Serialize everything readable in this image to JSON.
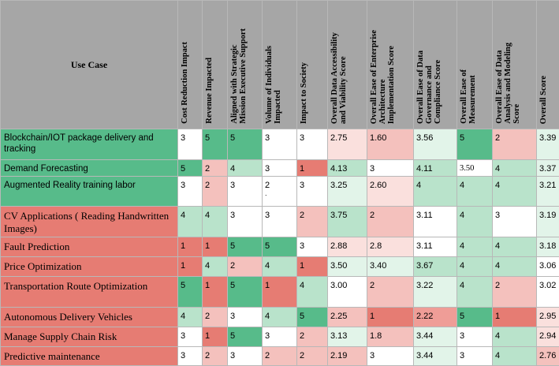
{
  "header": {
    "use_case": "Use Case",
    "columns": [
      "Cost Reduction Impact",
      "Revenue Impacted",
      "Aligned with Strategic\nMission Executive Support",
      "Volume of Individuals\nImpacted",
      "Impact to Society",
      "Overall Data Accessibility\nand Viability Score",
      "Overall Ease of Enterprise\nArchitecture\nImplementation Score",
      "Overall Ease of Data\nGovernance and\nCompliance Score",
      "Overall Ease of\nMeasurement",
      "Overall Ease of Data\nAnalysis and Modeling\nScore",
      "Overall Score"
    ]
  },
  "colors": {
    "header": "#a6a6a6",
    "green_dark": "#57bb8a",
    "green_mid": "#88cfa8",
    "green_light": "#b9e3cb",
    "green_pale": "#e2f4e9",
    "red_dark": "#e67c73",
    "red_mid": "#ef9d97",
    "red_light": "#f4c1bd",
    "red_pale": "#fae0dd",
    "white": "#ffffff"
  },
  "rows": [
    {
      "label": "Blockchain/IOT package delivery and tracking",
      "color": "green_dark",
      "font": "sans",
      "cells": [
        [
          "3",
          "white"
        ],
        [
          "5",
          "green_dark"
        ],
        [
          "5",
          "green_dark"
        ],
        [
          "3",
          "white"
        ],
        [
          "3",
          "white"
        ],
        [
          "2.75",
          "red_pale"
        ],
        [
          "1.60",
          "red_light"
        ],
        [
          "3.56",
          "green_pale"
        ],
        [
          "5",
          "green_dark"
        ],
        [
          "2",
          "red_light"
        ],
        [
          "3.39",
          "green_pale"
        ]
      ]
    },
    {
      "label": "Demand Forecasting",
      "color": "green_dark",
      "font": "sans",
      "cells": [
        [
          "5",
          "green_dark"
        ],
        [
          "2",
          "red_light"
        ],
        [
          "4",
          "green_light"
        ],
        [
          "3",
          "white"
        ],
        [
          "1",
          "red_dark"
        ],
        [
          "4.13",
          "green_light"
        ],
        [
          "3",
          "white"
        ],
        [
          "4.11",
          "green_light"
        ],
        [
          "3.50",
          "white"
        ],
        [
          "4",
          "green_light"
        ],
        [
          "3.37",
          "green_pale"
        ]
      ]
    },
    {
      "label": "Augmented Reality training labor",
      "color": "green_dark",
      "font": "sans",
      "cells": [
        [
          "3",
          "white"
        ],
        [
          "2",
          "red_light"
        ],
        [
          "3",
          "white"
        ],
        [
          "2",
          "white",
          "."
        ],
        [
          "3",
          "white"
        ],
        [
          "3.25",
          "green_pale"
        ],
        [
          "2.60",
          "red_pale"
        ],
        [
          "4",
          "green_light"
        ],
        [
          "4",
          "green_light"
        ],
        [
          "4",
          "green_light"
        ],
        [
          "3.21",
          "green_pale"
        ]
      ]
    },
    {
      "label": "CV Applications ( Reading Handwritten Images)",
      "color": "red_dark",
      "font": "serif",
      "cells": [
        [
          "4",
          "green_light"
        ],
        [
          "4",
          "green_light"
        ],
        [
          "3",
          "white"
        ],
        [
          "3",
          "white"
        ],
        [
          "2",
          "red_light"
        ],
        [
          "3.75",
          "green_light"
        ],
        [
          "2",
          "red_light"
        ],
        [
          "3.11",
          "white"
        ],
        [
          "4",
          "green_light"
        ],
        [
          "3",
          "white"
        ],
        [
          "3.19",
          "green_pale"
        ]
      ]
    },
    {
      "label": "Fault Prediction",
      "color": "red_dark",
      "font": "serif",
      "cells": [
        [
          "1",
          "red_dark"
        ],
        [
          "1",
          "red_dark"
        ],
        [
          "5",
          "green_dark"
        ],
        [
          "5",
          "green_dark"
        ],
        [
          "3",
          "white"
        ],
        [
          "2.88",
          "red_pale"
        ],
        [
          "2.8",
          "red_pale"
        ],
        [
          "3.11",
          "white"
        ],
        [
          "4",
          "green_light"
        ],
        [
          "4",
          "green_light"
        ],
        [
          "3.18",
          "green_pale"
        ]
      ]
    },
    {
      "label": "Price Optimization",
      "color": "red_dark",
      "font": "serif",
      "cells": [
        [
          "1",
          "red_dark"
        ],
        [
          "4",
          "green_light"
        ],
        [
          "2",
          "red_light"
        ],
        [
          "4",
          "green_light"
        ],
        [
          "1",
          "red_dark"
        ],
        [
          "3.50",
          "green_pale"
        ],
        [
          "3.40",
          "green_pale"
        ],
        [
          "3.67",
          "green_light"
        ],
        [
          "4",
          "green_light"
        ],
        [
          "4",
          "green_light"
        ],
        [
          "3.06",
          "white"
        ]
      ]
    },
    {
      "label": "Transportation Route Optimization",
      "color": "red_dark",
      "font": "serif",
      "cells": [
        [
          "5",
          "green_dark"
        ],
        [
          "1",
          "red_dark"
        ],
        [
          "5",
          "green_dark"
        ],
        [
          "1",
          "red_dark"
        ],
        [
          "4",
          "green_light"
        ],
        [
          "3.00",
          "white"
        ],
        [
          "2",
          "red_light"
        ],
        [
          "3.22",
          "green_pale"
        ],
        [
          "4",
          "green_light"
        ],
        [
          "2",
          "red_light"
        ],
        [
          "3.02",
          "white"
        ]
      ]
    },
    {
      "label": "Autonomous Delivery Vehicles",
      "color": "red_dark",
      "font": "serif",
      "cells": [
        [
          "4",
          "green_light"
        ],
        [
          "2",
          "red_light"
        ],
        [
          "3",
          "white"
        ],
        [
          "4",
          "green_light"
        ],
        [
          "5",
          "green_dark"
        ],
        [
          "2.25",
          "red_light"
        ],
        [
          "1",
          "red_dark"
        ],
        [
          "2.22",
          "red_mid"
        ],
        [
          "5",
          "green_dark"
        ],
        [
          "1",
          "red_dark"
        ],
        [
          "2.95",
          "red_pale"
        ]
      ]
    },
    {
      "label": "Manage Supply Chain Risk",
      "color": "red_dark",
      "font": "serif",
      "cells": [
        [
          "3",
          "white"
        ],
        [
          "1",
          "red_dark"
        ],
        [
          "5",
          "green_dark"
        ],
        [
          "3",
          "white"
        ],
        [
          "2",
          "red_light"
        ],
        [
          "3.13",
          "green_pale"
        ],
        [
          "1.8",
          "red_light"
        ],
        [
          "3.44",
          "green_pale"
        ],
        [
          "3",
          "white"
        ],
        [
          "4",
          "green_light"
        ],
        [
          "2.94",
          "red_pale"
        ]
      ]
    },
    {
      "label": "Predictive maintenance",
      "color": "red_dark",
      "font": "serif",
      "cells": [
        [
          "3",
          "white"
        ],
        [
          "2",
          "red_light"
        ],
        [
          "3",
          "white"
        ],
        [
          "2",
          "red_light"
        ],
        [
          "2",
          "red_light"
        ],
        [
          "2.19",
          "red_light"
        ],
        [
          "3",
          "white"
        ],
        [
          "3.44",
          "green_pale"
        ],
        [
          "3",
          "white"
        ],
        [
          "4",
          "green_light"
        ],
        [
          "2.76",
          "red_light"
        ]
      ]
    }
  ]
}
